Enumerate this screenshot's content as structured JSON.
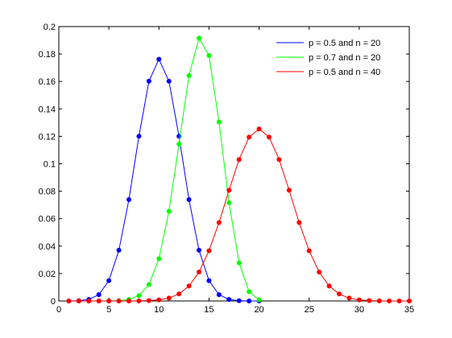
{
  "chart_data": {
    "type": "line",
    "xlim": [
      0,
      35
    ],
    "xticks": [
      0,
      5,
      10,
      15,
      20,
      25,
      30,
      35
    ],
    "ylim": [
      0,
      0.2
    ],
    "yticks": [
      0,
      0.02,
      0.04,
      0.06,
      0.08,
      0.1,
      0.12,
      0.14,
      0.16,
      0.18,
      0.2
    ],
    "grid": false,
    "legend": "top-right",
    "series": [
      {
        "name": "p = 0.5 and n = 20",
        "color": "#0000ff",
        "x": [
          1,
          2,
          3,
          4,
          5,
          6,
          7,
          8,
          9,
          10,
          11,
          12,
          13,
          14,
          15,
          16,
          17,
          18,
          19,
          20
        ],
        "values": [
          0.0,
          0.0002,
          0.0011,
          0.0046,
          0.0148,
          0.037,
          0.0739,
          0.1201,
          0.1602,
          0.1762,
          0.1602,
          0.1201,
          0.0739,
          0.037,
          0.0148,
          0.0046,
          0.0011,
          0.0002,
          0.0,
          0.0
        ]
      },
      {
        "name": "p = 0.7 and n = 20",
        "color": "#00ff00",
        "x": [
          1,
          2,
          3,
          4,
          5,
          6,
          7,
          8,
          9,
          10,
          11,
          12,
          13,
          14,
          15,
          16,
          17,
          18,
          19,
          20
        ],
        "values": [
          0.0,
          0.0,
          0.0,
          0.0,
          0.0,
          0.0002,
          0.001,
          0.0039,
          0.012,
          0.0308,
          0.0654,
          0.1144,
          0.1643,
          0.1916,
          0.1789,
          0.1304,
          0.0716,
          0.0278,
          0.0068,
          0.0008
        ]
      },
      {
        "name": "p = 0.5 and n = 40",
        "color": "#ff0000",
        "x": [
          1,
          2,
          3,
          4,
          5,
          6,
          7,
          8,
          9,
          10,
          11,
          12,
          13,
          14,
          15,
          16,
          17,
          18,
          19,
          20,
          21,
          22,
          23,
          24,
          25,
          26,
          27,
          28,
          29,
          30,
          31,
          32,
          33,
          34,
          35
        ],
        "values": [
          0.0,
          0.0,
          0.0,
          0.0,
          0.0,
          0.0,
          0.0,
          0.0001,
          0.0003,
          0.0008,
          0.0021,
          0.0051,
          0.0109,
          0.0211,
          0.0366,
          0.0572,
          0.0807,
          0.1031,
          0.1194,
          0.1254,
          0.1194,
          0.1031,
          0.0807,
          0.0572,
          0.0366,
          0.0211,
          0.0109,
          0.0051,
          0.0021,
          0.0008,
          0.0003,
          0.0001,
          0.0,
          0.0,
          0.0
        ]
      }
    ]
  }
}
